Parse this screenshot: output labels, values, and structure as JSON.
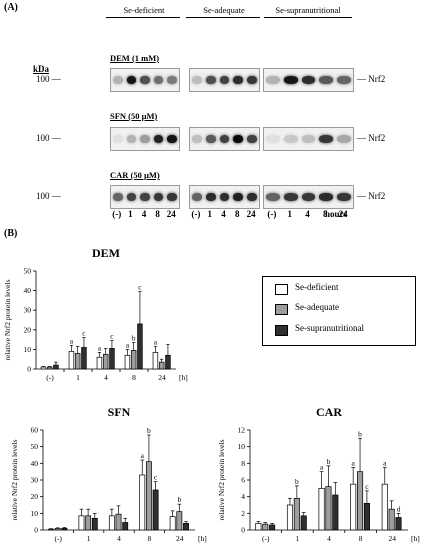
{
  "panel_a": {
    "label": "(A)",
    "groups": [
      "Se-deficient",
      "Se-adequate",
      "Se-supranutritional"
    ],
    "kda_label": "kDa",
    "kda_marker": "100",
    "protein": "Nrf2",
    "lanes": [
      "(-)",
      "1",
      "4",
      "8",
      "24"
    ],
    "lanes_unit": "hours",
    "blots": [
      {
        "label": "DEM (1 mM)",
        "intensity": [
          [
            0.25,
            0.95,
            0.7,
            0.55,
            0.5
          ],
          [
            0.2,
            0.7,
            0.75,
            0.85,
            0.8
          ],
          [
            0.25,
            0.95,
            0.85,
            0.65,
            0.6
          ]
        ]
      },
      {
        "label": "SFN (50 µM)",
        "intensity": [
          [
            0.05,
            0.25,
            0.35,
            0.9,
            0.95
          ],
          [
            0.2,
            0.65,
            0.75,
            1.0,
            0.75
          ],
          [
            0.05,
            0.15,
            0.2,
            0.8,
            0.3
          ]
        ]
      },
      {
        "label": "CAR (50 µM)",
        "intensity": [
          [
            0.6,
            0.75,
            0.75,
            0.8,
            0.8
          ],
          [
            0.6,
            0.85,
            0.85,
            0.9,
            0.85
          ],
          [
            0.6,
            0.8,
            0.8,
            0.85,
            0.8
          ]
        ]
      }
    ]
  },
  "panel_b": {
    "label": "(B)",
    "legend": [
      "Se-deficient",
      "Se-adequate",
      "Se-supranutritional"
    ],
    "series_colors": [
      "#ffffff",
      "#9e9e9e",
      "#2f2f2f"
    ]
  },
  "chart_data": [
    {
      "type": "bar",
      "title": "DEM",
      "ylabel": "relative Nrf2 protein levels",
      "xlabel": "[h]",
      "categories": [
        "(-)",
        "1",
        "4",
        "8",
        "24"
      ],
      "ylim": [
        0,
        50
      ],
      "yticks": [
        0,
        10,
        20,
        30,
        40,
        50
      ],
      "series": [
        {
          "name": "Se-deficient",
          "values": [
            1,
            9,
            6,
            7,
            8.5
          ],
          "errors": [
            0.3,
            3,
            2.5,
            3,
            3
          ]
        },
        {
          "name": "Se-adequate",
          "values": [
            1,
            8,
            7.5,
            9.5,
            3.5
          ],
          "errors": [
            0.3,
            3.5,
            3,
            4,
            1.5
          ]
        },
        {
          "name": "Se-supranutritional",
          "values": [
            2,
            11,
            10.5,
            23,
            7
          ],
          "errors": [
            1.5,
            5,
            4,
            16.5,
            5.5
          ]
        }
      ],
      "annotations": [
        {
          "category": "1",
          "series": 0,
          "text": "a"
        },
        {
          "category": "1",
          "series": 2,
          "text": "c"
        },
        {
          "category": "4",
          "series": 0,
          "text": "a"
        },
        {
          "category": "4",
          "series": 2,
          "text": "c"
        },
        {
          "category": "8",
          "series": 0,
          "text": "a"
        },
        {
          "category": "8",
          "series": 1,
          "text": "b"
        },
        {
          "category": "8",
          "series": 2,
          "text": "c"
        },
        {
          "category": "24",
          "series": 0,
          "text": "a"
        }
      ]
    },
    {
      "type": "bar",
      "title": "SFN",
      "ylabel": "relative Nrf2 protein levels",
      "xlabel": "[h]",
      "categories": [
        "(-)",
        "1",
        "4",
        "8",
        "24"
      ],
      "ylim": [
        0,
        60
      ],
      "yticks": [
        0,
        10,
        20,
        30,
        40,
        50,
        60
      ],
      "series": [
        {
          "name": "Se-deficient",
          "values": [
            0.5,
            8.5,
            8.5,
            33,
            8
          ],
          "errors": [
            0.3,
            4,
            4,
            9,
            3.5
          ]
        },
        {
          "name": "Se-adequate",
          "values": [
            1,
            8.5,
            9.5,
            41,
            11
          ],
          "errors": [
            0.3,
            4,
            5,
            16,
            4.5
          ]
        },
        {
          "name": "Se-supranutritional",
          "values": [
            1,
            7,
            4.5,
            24,
            4
          ],
          "errors": [
            0.5,
            3,
            2.5,
            5,
            1
          ]
        }
      ],
      "annotations": [
        {
          "category": "8",
          "series": 0,
          "text": "a"
        },
        {
          "category": "8",
          "series": 1,
          "text": "b"
        },
        {
          "category": "8",
          "series": 2,
          "text": "c"
        },
        {
          "category": "24",
          "series": 1,
          "text": "b"
        }
      ]
    },
    {
      "type": "bar",
      "title": "CAR",
      "ylabel": "relative Nrf2 protein levels",
      "xlabel": "[h]",
      "categories": [
        "(-)",
        "1",
        "4",
        "8",
        "24"
      ],
      "ylim": [
        0,
        12
      ],
      "yticks": [
        0,
        2,
        4,
        6,
        8,
        10,
        12
      ],
      "series": [
        {
          "name": "Se-deficient",
          "values": [
            0.8,
            3,
            5,
            5.5,
            5.5
          ],
          "errors": [
            0.2,
            0.8,
            2,
            2,
            2
          ]
        },
        {
          "name": "Se-adequate",
          "values": [
            0.7,
            3.8,
            5.2,
            7,
            2.5
          ],
          "errors": [
            0.2,
            1.5,
            2.5,
            4,
            1
          ]
        },
        {
          "name": "Se-supranutritional",
          "values": [
            0.6,
            1.7,
            4.2,
            3.2,
            1.5
          ],
          "errors": [
            0.2,
            0.4,
            1.5,
            1.5,
            0.5
          ]
        }
      ],
      "annotations": [
        {
          "category": "1",
          "series": 1,
          "text": "b"
        },
        {
          "category": "4",
          "series": 0,
          "text": "a"
        },
        {
          "category": "4",
          "series": 1,
          "text": "b"
        },
        {
          "category": "8",
          "series": 0,
          "text": "a"
        },
        {
          "category": "8",
          "series": 1,
          "text": "b"
        },
        {
          "category": "8",
          "series": 2,
          "text": "c"
        },
        {
          "category": "24",
          "series": 0,
          "text": "a"
        },
        {
          "category": "24",
          "series": 2,
          "text": "d"
        }
      ]
    }
  ]
}
